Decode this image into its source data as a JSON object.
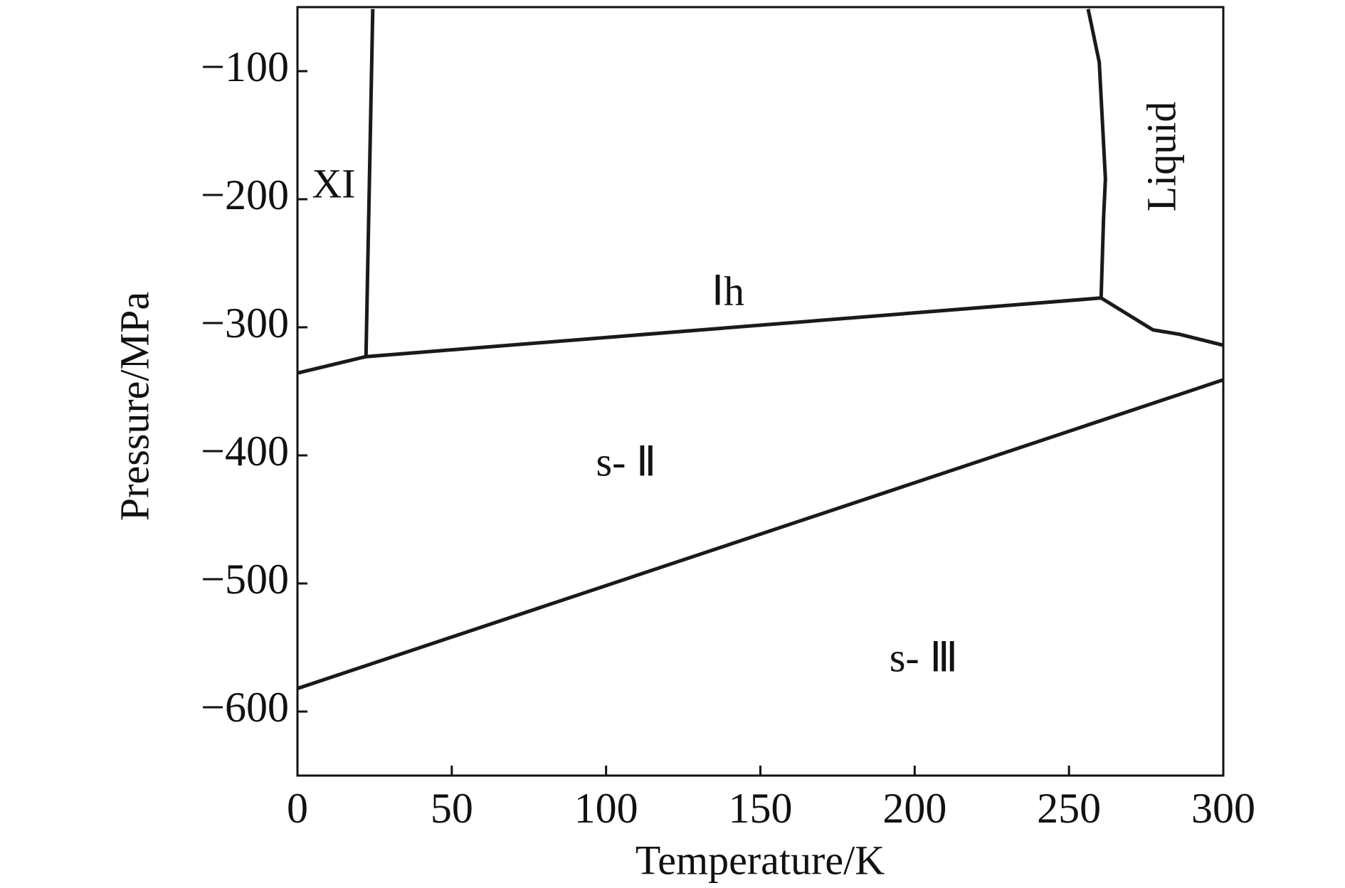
{
  "chart_data": {
    "type": "line",
    "x_label": "Temperature/K",
    "y_label": "Pressure/MPa",
    "xlim": [
      0,
      300
    ],
    "ylim": [
      -650,
      -50
    ],
    "xticks": [
      0,
      50,
      100,
      150,
      200,
      250,
      300
    ],
    "yticks": [
      {
        "value": -100,
        "label": "−100"
      },
      {
        "value": -200,
        "label": "−200"
      },
      {
        "value": -300,
        "label": "−300"
      },
      {
        "value": -400,
        "label": "−400"
      },
      {
        "value": -500,
        "label": "−500"
      },
      {
        "value": -600,
        "label": "−600"
      }
    ],
    "color": "#1a1a1a",
    "series": [
      {
        "x": [
          24.4,
          22.2
        ],
        "values": [
          -51.5,
          -322.9
        ]
      },
      {
        "x": [
          0,
          22.2,
          260.4
        ],
        "values": [
          -335.7,
          -322.9,
          -277.1
        ]
      },
      {
        "x": [
          256.2,
          259.8,
          261.8,
          261.2,
          260.4
        ],
        "values": [
          -51.5,
          -93,
          -184,
          -214.5,
          -277.1
        ]
      },
      {
        "x": [
          260.4,
          277.2,
          285.7,
          300
        ],
        "values": [
          -277.1,
          -302,
          -305.4,
          -314
        ]
      },
      {
        "x": [
          0,
          300
        ],
        "values": [
          -582,
          -341
        ]
      }
    ],
    "annotations": [
      "XI",
      "Ⅰh",
      "Liquid",
      "s- Ⅱ",
      "s- Ⅲ"
    ]
  }
}
